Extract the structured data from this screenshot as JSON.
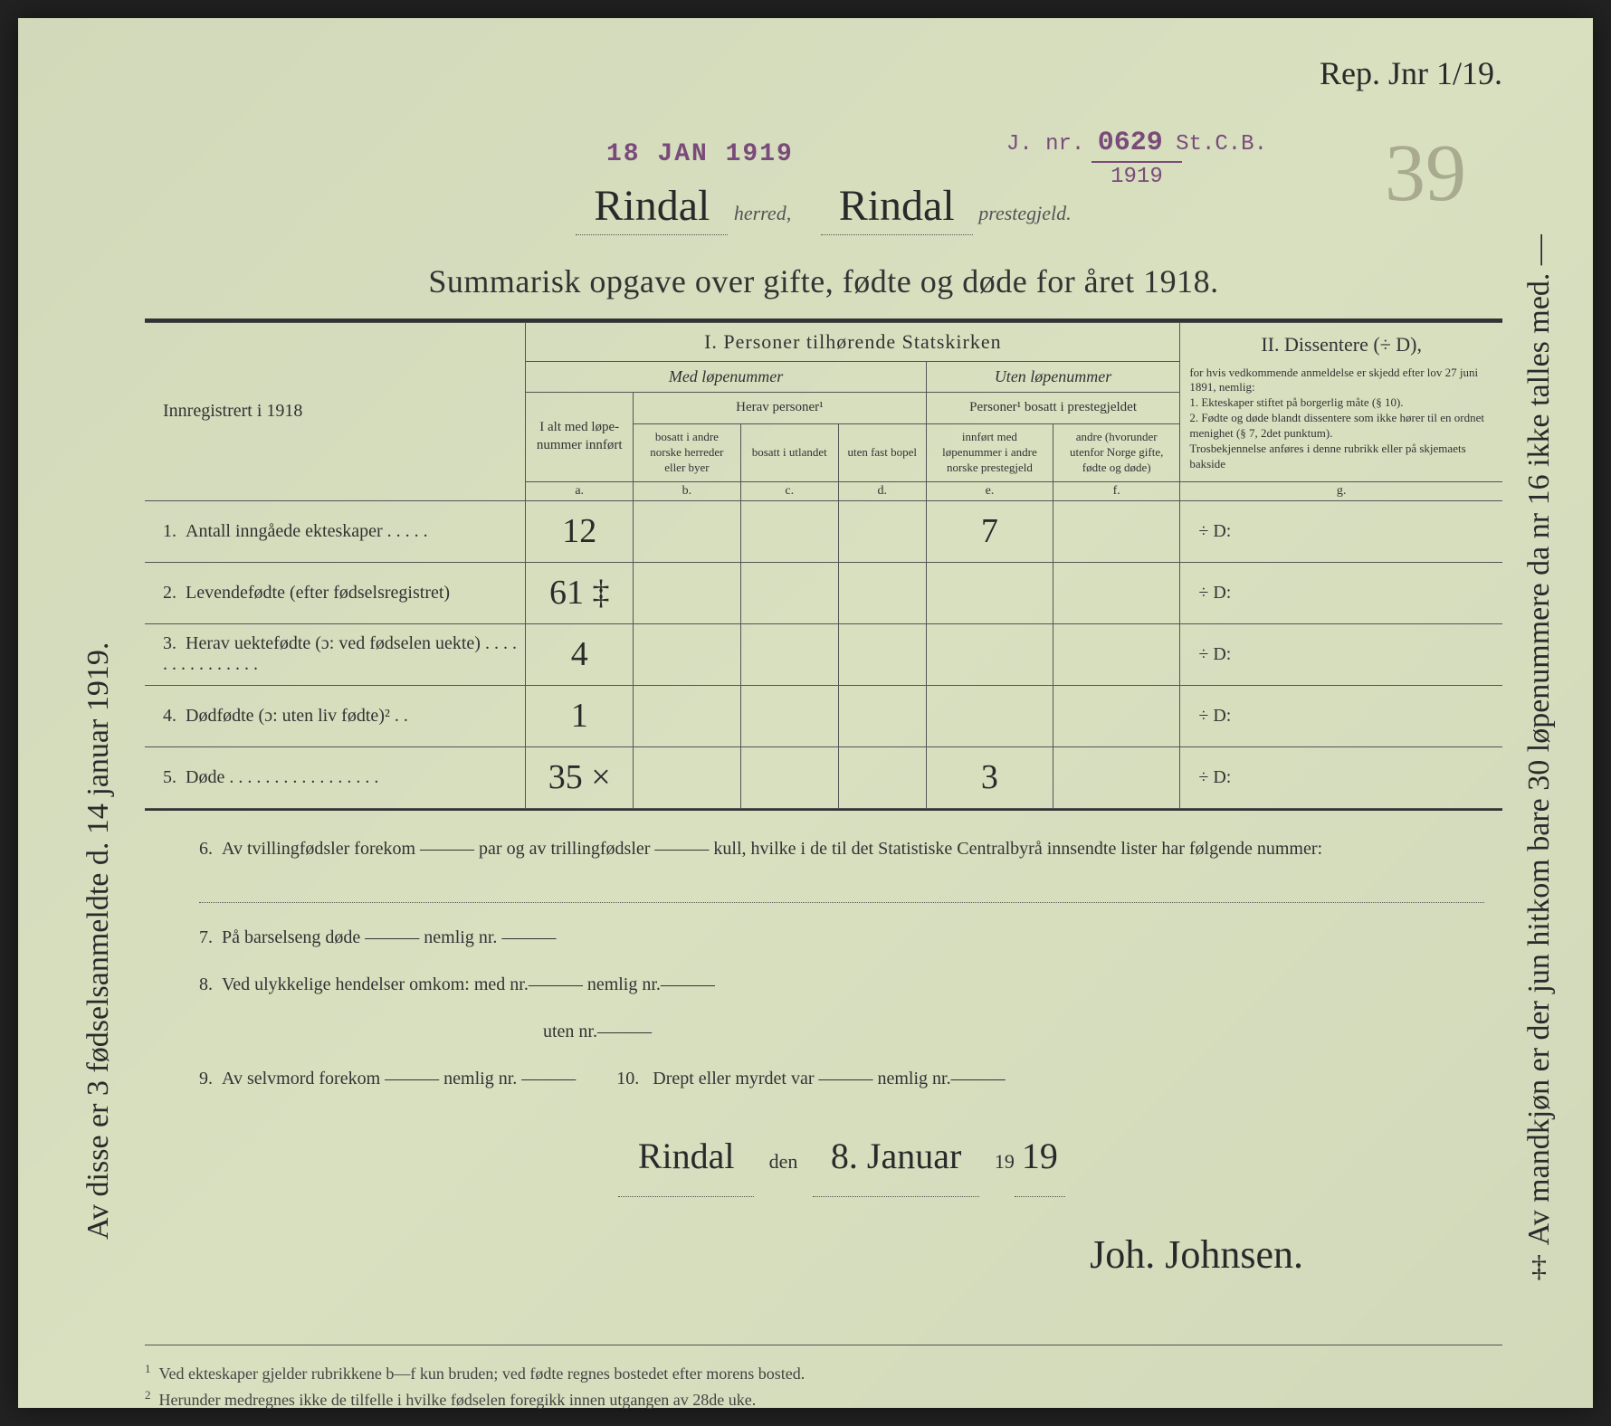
{
  "handwritten_top_right": "Rep. Jnr 1/19.",
  "stamp_date": "18 JAN 1919",
  "stamp_jnr_prefix": "J. nr.",
  "stamp_jnr_number": "0629",
  "stamp_jnr_suffix": "St.C.B.",
  "stamp_jnr_year": "1919",
  "big_page_number": "39",
  "header": {
    "herred_value": "Rindal",
    "herred_label": "herred,",
    "prestegjeld_value": "Rindal",
    "prestegjeld_label": "prestegjeld."
  },
  "title": "Summarisk opgave over gifte, fødte og døde for året 1918.",
  "table": {
    "section1_title": "I.  Personer tilhørende Statskirken",
    "section2_title": "II.  Dissentere (÷ D),",
    "med_lopenummer": "Med løpenummer",
    "uten_lopenummer": "Uten løpenummer",
    "innregistrert": "Innregistrert i 1918",
    "i_alt": "I alt med løpe-nummer innført",
    "herav_personer": "Herav personer¹",
    "personer_bosatt": "Personer¹ bosatt i prestegjeldet",
    "col_b": "bosatt i andre norske herreder eller byer",
    "col_c": "bosatt i utlandet",
    "col_d": "uten fast bopel",
    "col_e": "innført med løpenummer i andre norske prestegjeld",
    "col_f": "andre (hvorunder utenfor Norge gifte, fødte og døde)",
    "dissenter_text": "for hvis vedkommende anmeldelse er skjedd efter lov 27 juni 1891, nemlig:\n1. Ekteskaper stiftet på borgerlig måte (§ 10).\n2. Fødte og døde blandt dissentere som ikke hører til en ordnet menighet (§ 7, 2det punktum).\nTrosbekjennelse anføres i denne rubrikk eller på skjemaets bakside",
    "letters": {
      "a": "a.",
      "b": "b.",
      "c": "c.",
      "d": "d.",
      "e": "e.",
      "f": "f.",
      "g": "g."
    },
    "rows": [
      {
        "num": "1.",
        "label": "Antall inngåede ekteskaper . . . . .",
        "a": "12",
        "e": "7",
        "g": "÷ D:"
      },
      {
        "num": "2.",
        "label": "Levendefødte (efter fødselsregistret)",
        "a": "61 ‡",
        "e": "",
        "g": "÷ D:"
      },
      {
        "num": "3.",
        "label": "Herav uektefødte (ɔ: ved fødselen uekte) . . . . . . . . . . . . . . .",
        "a": "4",
        "e": "",
        "g": "÷ D:"
      },
      {
        "num": "4.",
        "label": "Dødfødte (ɔ: uten liv fødte)² . .",
        "a": "1",
        "e": "",
        "g": "÷ D:"
      },
      {
        "num": "5.",
        "label": "Døde . . . . . . . . . . . . . . . . .",
        "a": "35 ×",
        "e": "3",
        "g": "÷ D:"
      }
    ]
  },
  "bottom": {
    "item6": "Av tvillingfødsler forekom ——— par og av trillingfødsler ——— kull, hvilke i de til det Statistiske Centralbyrå innsendte lister har følgende nummer:",
    "item7": "På barselseng døde ——— nemlig nr. ———",
    "item8a": "Ved ulykkelige hendelser omkom: med nr.——— nemlig nr.———",
    "item8b": "uten nr.———",
    "item9": "Av selvmord forekom ——— nemlig nr. ———",
    "item10": "Drept eller myrdet var ——— nemlig nr.———",
    "place": "Rindal",
    "den_label": "den",
    "date": "8. Januar",
    "year_prefix": "19",
    "year_suffix": "19",
    "signature": "Joh. Johnsen."
  },
  "footnotes": {
    "f1": "Ved ekteskaper gjelder rubrikkene b—f kun bruden; ved fødte regnes bostedet efter morens bosted.",
    "f2": "Herunder medregnes ikke de tilfelle i hvilke fødselen foregikk innen utgangen av 28de uke."
  },
  "margin_left": "Av disse er 3 fødselsanmeldte d. 14 januar 1919.",
  "margin_right": "‡ Av mandkjøn er der jun hitkom bare 30 løpenummere da nr 16 ikke talles med. —"
}
